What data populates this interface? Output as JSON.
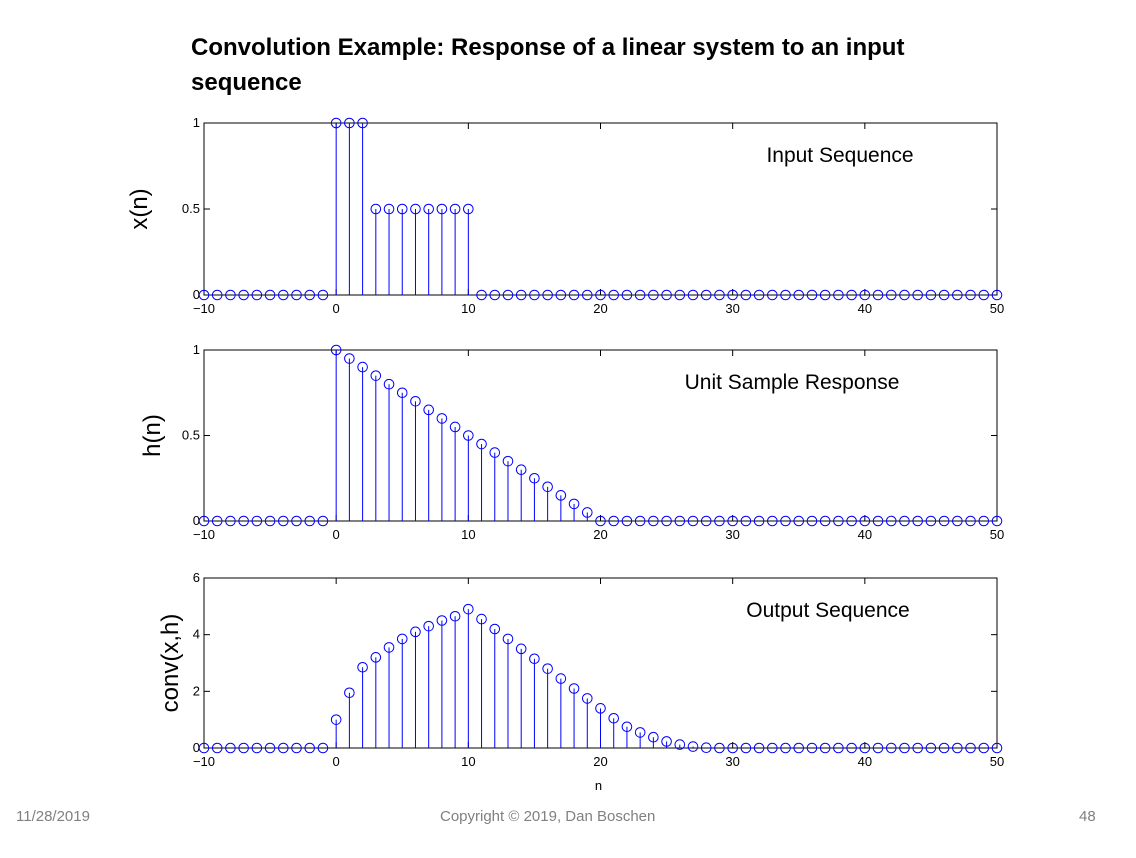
{
  "slide": {
    "title": "Convolution Example: Response of a linear system to an input sequence",
    "date": "11/28/2019",
    "copyright": "Copyright © 2019, Dan Boschen",
    "page": "48"
  },
  "colors": {
    "stem": "#0000ff",
    "axis": "#000000"
  },
  "chart_data": [
    {
      "type": "stem",
      "id": "x",
      "ylabel": "x(n)",
      "annotation": "Input Sequence",
      "xlim": [
        -10,
        50
      ],
      "ylim": [
        0,
        1
      ],
      "xticks": [
        -10,
        0,
        10,
        20,
        30,
        40,
        50
      ],
      "yticks": [
        0,
        0.5,
        1
      ],
      "ytick_labels": [
        "0",
        "0.5",
        "1"
      ],
      "xlabel": "",
      "n": [
        -10,
        -9,
        -8,
        -7,
        -6,
        -5,
        -4,
        -3,
        -2,
        -1,
        0,
        1,
        2,
        3,
        4,
        5,
        6,
        7,
        8,
        9,
        10,
        11,
        12,
        13,
        14,
        15,
        16,
        17,
        18,
        19,
        20,
        21,
        22,
        23,
        24,
        25,
        26,
        27,
        28,
        29,
        30,
        31,
        32,
        33,
        34,
        35,
        36,
        37,
        38,
        39,
        40,
        41,
        42,
        43,
        44,
        45,
        46,
        47,
        48,
        49,
        50
      ],
      "values": [
        0,
        0,
        0,
        0,
        0,
        0,
        0,
        0,
        0,
        0,
        1,
        1,
        1,
        0.5,
        0.5,
        0.5,
        0.5,
        0.5,
        0.5,
        0.5,
        0.5,
        0,
        0,
        0,
        0,
        0,
        0,
        0,
        0,
        0,
        0,
        0,
        0,
        0,
        0,
        0,
        0,
        0,
        0,
        0,
        0,
        0,
        0,
        0,
        0,
        0,
        0,
        0,
        0,
        0,
        0,
        0,
        0,
        0,
        0,
        0,
        0,
        0,
        0,
        0,
        0
      ]
    },
    {
      "type": "stem",
      "id": "h",
      "ylabel": "h(n)",
      "annotation": "Unit Sample Response",
      "xlim": [
        -10,
        50
      ],
      "ylim": [
        0,
        1
      ],
      "xticks": [
        -10,
        0,
        10,
        20,
        30,
        40,
        50
      ],
      "yticks": [
        0,
        0.5,
        1
      ],
      "ytick_labels": [
        "0",
        "0.5",
        "1"
      ],
      "xlabel": "",
      "n": [
        -10,
        -9,
        -8,
        -7,
        -6,
        -5,
        -4,
        -3,
        -2,
        -1,
        0,
        1,
        2,
        3,
        4,
        5,
        6,
        7,
        8,
        9,
        10,
        11,
        12,
        13,
        14,
        15,
        16,
        17,
        18,
        19,
        20,
        21,
        22,
        23,
        24,
        25,
        26,
        27,
        28,
        29,
        30,
        31,
        32,
        33,
        34,
        35,
        36,
        37,
        38,
        39,
        40,
        41,
        42,
        43,
        44,
        45,
        46,
        47,
        48,
        49,
        50
      ],
      "values": [
        0,
        0,
        0,
        0,
        0,
        0,
        0,
        0,
        0,
        0,
        1,
        0.95,
        0.9,
        0.85,
        0.8,
        0.75,
        0.7,
        0.65,
        0.6,
        0.55,
        0.5,
        0.45,
        0.4,
        0.35,
        0.3,
        0.25,
        0.2,
        0.15,
        0.1,
        0.05,
        0,
        0,
        0,
        0,
        0,
        0,
        0,
        0,
        0,
        0,
        0,
        0,
        0,
        0,
        0,
        0,
        0,
        0,
        0,
        0,
        0,
        0,
        0,
        0,
        0,
        0,
        0,
        0,
        0,
        0,
        0
      ]
    },
    {
      "type": "stem",
      "id": "y",
      "ylabel": "conv(x,h)",
      "annotation": "Output Sequence",
      "xlim": [
        -10,
        50
      ],
      "ylim": [
        0,
        6
      ],
      "xticks": [
        -10,
        0,
        10,
        20,
        30,
        40,
        50
      ],
      "yticks": [
        0,
        2,
        4,
        6
      ],
      "ytick_labels": [
        "0",
        "2",
        "4",
        "6"
      ],
      "xlabel": "n",
      "n": [
        -10,
        -9,
        -8,
        -7,
        -6,
        -5,
        -4,
        -3,
        -2,
        -1,
        0,
        1,
        2,
        3,
        4,
        5,
        6,
        7,
        8,
        9,
        10,
        11,
        12,
        13,
        14,
        15,
        16,
        17,
        18,
        19,
        20,
        21,
        22,
        23,
        24,
        25,
        26,
        27,
        28,
        29,
        30,
        31,
        32,
        33,
        34,
        35,
        36,
        37,
        38,
        39,
        40,
        41,
        42,
        43,
        44,
        45,
        46,
        47,
        48,
        49,
        50
      ],
      "values": [
        0,
        0,
        0,
        0,
        0,
        0,
        0,
        0,
        0,
        0,
        1,
        1.95,
        2.85,
        3.2,
        3.55,
        3.85,
        4.1,
        4.3,
        4.5,
        4.65,
        4.9,
        4.55,
        4.2,
        3.85,
        3.5,
        3.15,
        2.8,
        2.45,
        2.1,
        1.75,
        1.4,
        1.05,
        0.75,
        0.55,
        0.38,
        0.23,
        0.12,
        0.05,
        0.01,
        0,
        0,
        0,
        0,
        0,
        0,
        0,
        0,
        0,
        0,
        0,
        0,
        0,
        0,
        0,
        0,
        0,
        0,
        0,
        0,
        0,
        0
      ]
    }
  ]
}
